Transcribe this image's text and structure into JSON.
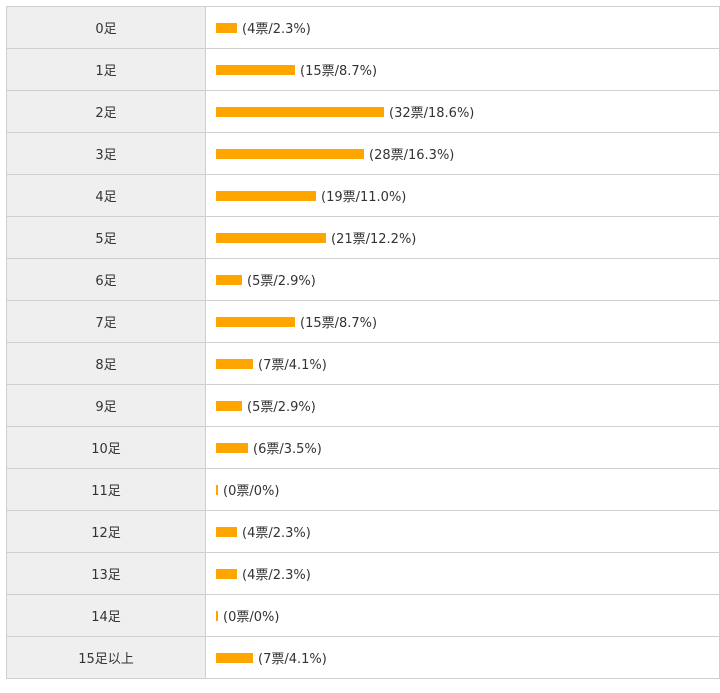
{
  "chart_data": {
    "type": "bar",
    "orientation": "horizontal",
    "bar_color": "#ffa500",
    "categories": [
      "0足",
      "1足",
      "2足",
      "3足",
      "4足",
      "5足",
      "6足",
      "7足",
      "8足",
      "9足",
      "10足",
      "11足",
      "12足",
      "13足",
      "14足",
      "15足以上"
    ],
    "values": [
      4,
      15,
      32,
      28,
      19,
      21,
      5,
      15,
      7,
      5,
      6,
      0,
      4,
      4,
      0,
      7
    ],
    "percentages": [
      2.3,
      8.7,
      18.6,
      16.3,
      11.0,
      12.2,
      2.9,
      8.7,
      4.1,
      2.9,
      3.5,
      0,
      2.3,
      2.3,
      0,
      4.1
    ],
    "value_labels": [
      "(4票/2.3%)",
      "(15票/8.7%)",
      "(32票/18.6%)",
      "(28票/16.3%)",
      "(19票/11.0%)",
      "(21票/12.2%)",
      "(5票/2.9%)",
      "(15票/8.7%)",
      "(7票/4.1%)",
      "(5票/2.9%)",
      "(6票/3.5%)",
      "(0票/0%)",
      "(4票/2.3%)",
      "(4票/2.3%)",
      "(0票/0%)",
      "(7票/4.1%)"
    ]
  }
}
